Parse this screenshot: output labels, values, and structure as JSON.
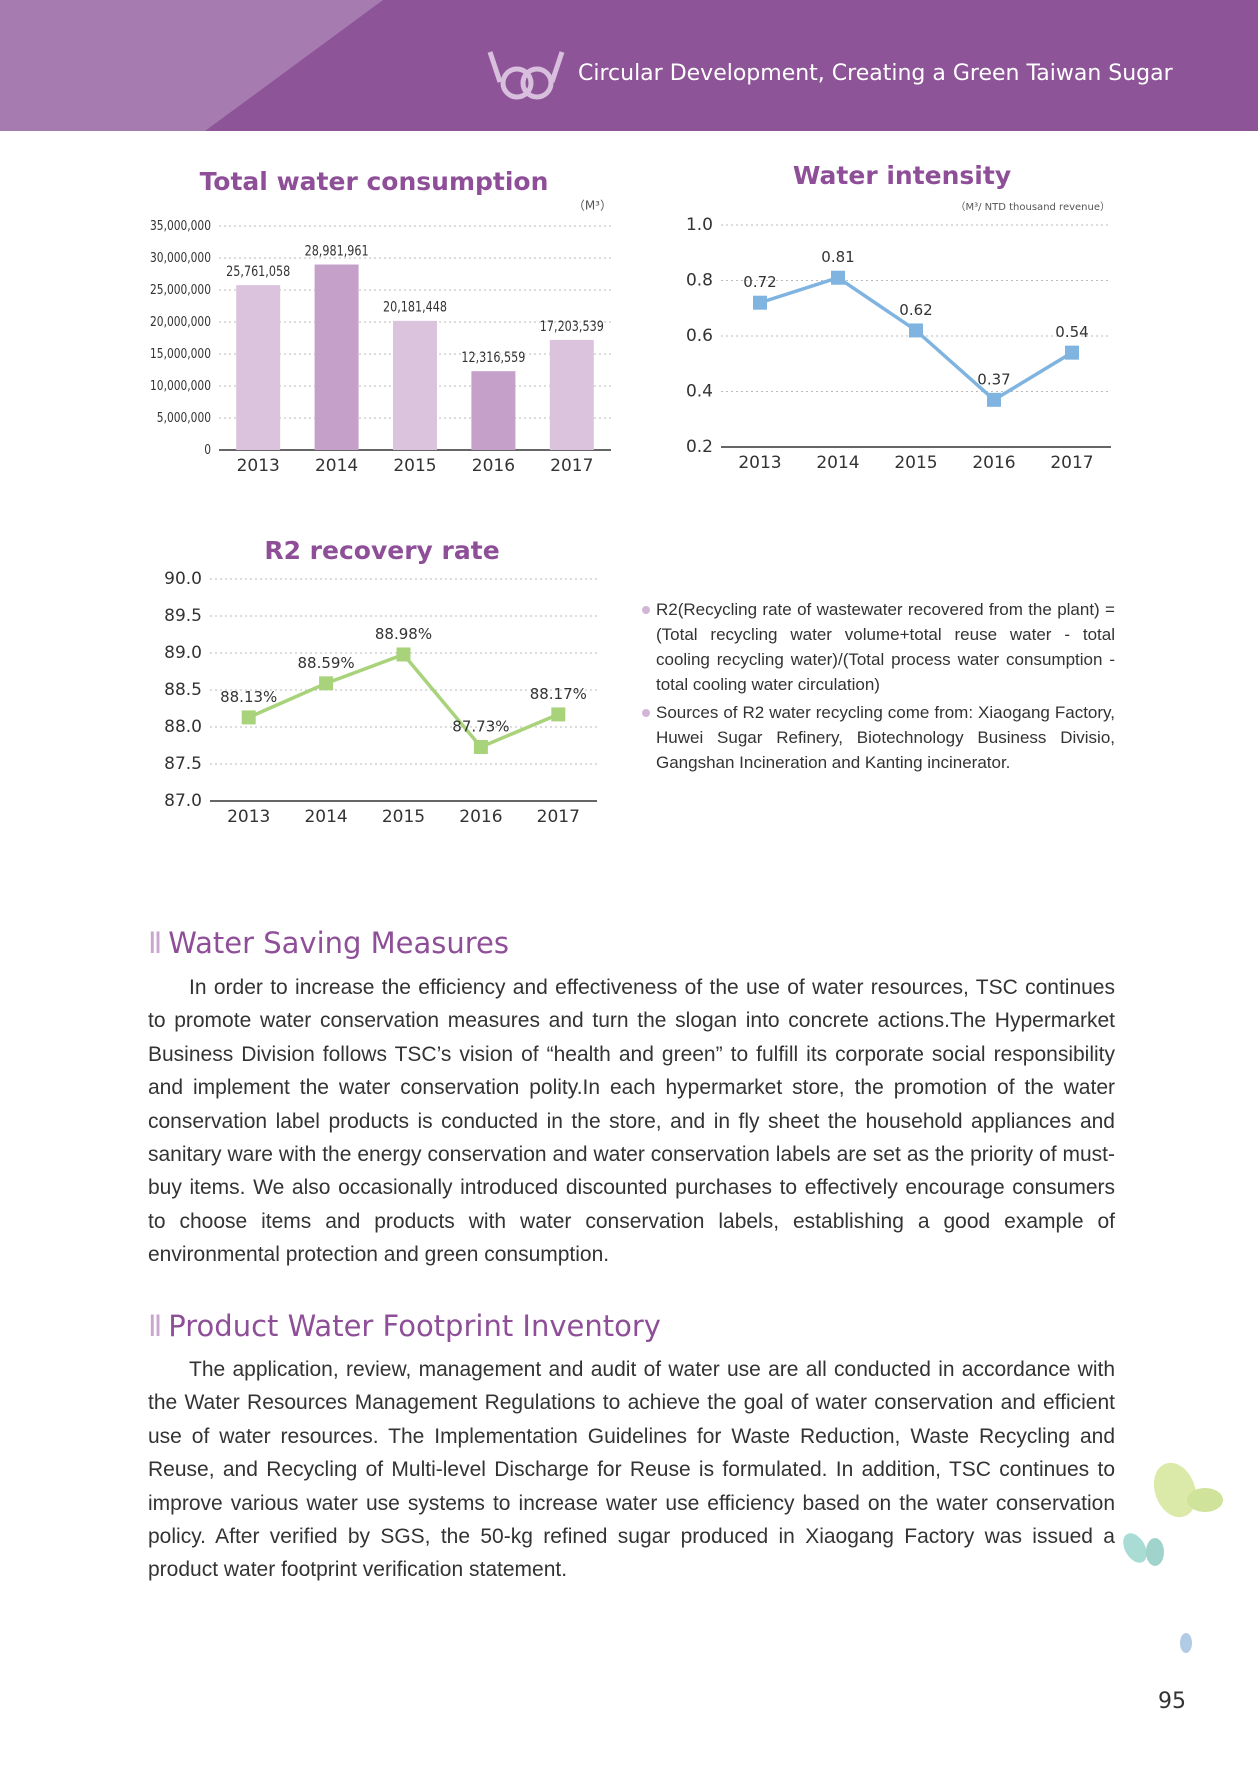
{
  "header": {
    "title": "Circular Development, Creating a Green Taiwan Sugar"
  },
  "chart_data": [
    {
      "type": "bar",
      "title": "Total water consumption",
      "unit": "（M³）",
      "categories": [
        "2013",
        "2014",
        "2015",
        "2016",
        "2017"
      ],
      "values": [
        25761058,
        28981961,
        20181448,
        12316559,
        17203539
      ],
      "value_labels": [
        "25,761,058",
        "28,981,961",
        "20,181,448",
        "12,316,559",
        "17,203,539"
      ],
      "colors": [
        "#dbc3de",
        "#c5a0c9",
        "#dbc3de",
        "#c5a0c9",
        "#dbc3de"
      ],
      "ylim": [
        0,
        35000000
      ],
      "yticks": [
        0,
        {
          "value": 5000000,
          "label": "5,000,000"
        },
        {
          "value": 10000000,
          "label": "10,000,000"
        },
        {
          "value": 15000000,
          "label": "15,000,000"
        },
        {
          "value": 20000000,
          "label": "20,000,000"
        },
        {
          "value": 25000000,
          "label": "25,000,000"
        },
        {
          "value": 30000000,
          "label": "30,000,000"
        },
        {
          "value": 35000000,
          "label": "35,000,000"
        }
      ],
      "grid": true
    },
    {
      "type": "line",
      "title": "Water intensity",
      "unit": "（M³/ NTD thousand revenue）",
      "categories": [
        "2013",
        "2014",
        "2015",
        "2016",
        "2017"
      ],
      "values": [
        0.72,
        0.81,
        0.62,
        0.37,
        0.54
      ],
      "color": "#7fb4e0",
      "ylim": [
        0.2,
        1.0
      ],
      "yticks": [
        0.2,
        0.4,
        0.6,
        0.8,
        {
          "value": 1.0,
          "label": "1.0"
        }
      ],
      "grid": true
    },
    {
      "type": "line",
      "title": "R2 recovery rate",
      "categories": [
        "2013",
        "2014",
        "2015",
        "2016",
        "2017"
      ],
      "values": [
        88.13,
        88.59,
        88.98,
        87.73,
        88.17
      ],
      "value_labels": [
        "88.13%",
        "88.59%",
        "88.98%",
        "87.73%",
        "88.17%"
      ],
      "color": "#a9d37a",
      "ylim": [
        87.0,
        90.0
      ],
      "yticks": [
        {
          "value": 87.0,
          "label": "87.0"
        },
        87.5,
        {
          "value": 88.0,
          "label": "88.0"
        },
        88.5,
        {
          "value": 89.0,
          "label": "89.0"
        },
        89.5,
        {
          "value": 90.0,
          "label": "90.0"
        }
      ],
      "grid": true
    }
  ],
  "notes": [
    "R2(Recycling rate of wastewater recovered from the plant) =(Total recycling water volume+total reuse water - total cooling recycling water)/(Total process water consumption - total cooling water circulation)",
    "Sources of R2 water recycling come from: Xiaogang Factory, Huwei Sugar Refinery, Biotechnology Business Divisio, Gangshan Incineration and Kanting incinerator."
  ],
  "sections": [
    {
      "heading": "Water Saving Measures",
      "text": "In order to increase the efficiency and effectiveness of the use of water resources, TSC continues to promote water conservation measures and turn the slogan into concrete actions.The Hypermarket Business Division follows TSC’s vision of “health and green” to fulfill its corporate social responsibility and implement the water conservation polity.In each hypermarket store, the promotion of the water conservation label products is conducted in the store, and in fly sheet the household appliances and sanitary ware with the energy conservation and water conservation labels are set as the priority of must-buy items. We also occasionally introduced discounted purchases to effectively encourage consumers to choose items and products with water conservation labels, establishing a good example of environmental protection and green consumption."
    },
    {
      "heading": "Product Water Footprint Inventory",
      "text": "The application, review, management and audit of water use are all conducted in accordance with the Water Resources Management Regulations to achieve the goal of water conservation and efficient use of water resources. The Implementation Guidelines for Waste Reduction, Waste Recycling and Reuse, and Recycling of Multi-level Discharge for Reuse is formulated. In addition, TSC continues to improve various water use systems to increase water use efficiency based on the water conservation policy. After verified by SGS, the 50-kg refined sugar produced in Xiaogang Factory was issued a product water footprint verification statement."
    }
  ],
  "page_number": "95"
}
